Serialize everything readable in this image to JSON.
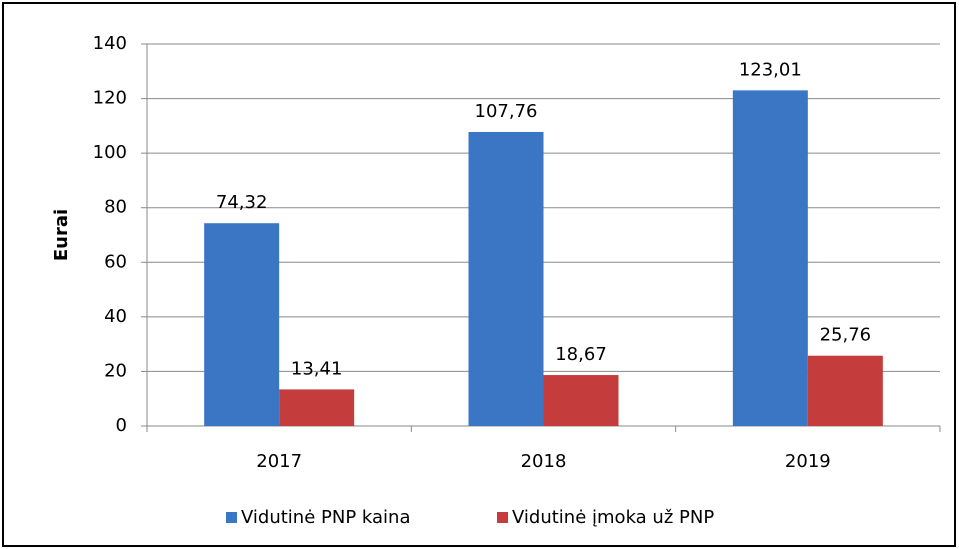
{
  "chart_data": {
    "type": "bar",
    "ylabel": "Eurai",
    "categories": [
      "2017",
      "2018",
      "2019"
    ],
    "series": [
      {
        "name": "Vidutinė PNP kaina",
        "color": "#3a76c4",
        "values": [
          74.32,
          107.76,
          123.01
        ],
        "value_labels": [
          "74,32",
          "107,76",
          "123,01"
        ]
      },
      {
        "name": "Vidutinė įmoka už PNP",
        "color": "#c43c3c",
        "values": [
          13.41,
          18.67,
          25.76
        ],
        "value_labels": [
          "13,41",
          "18,67",
          "25,76"
        ]
      }
    ],
    "ylim": [
      0,
      140
    ],
    "yticks": [
      0,
      20,
      40,
      60,
      80,
      100,
      120,
      140
    ],
    "grid": true,
    "legend": "bottom"
  }
}
